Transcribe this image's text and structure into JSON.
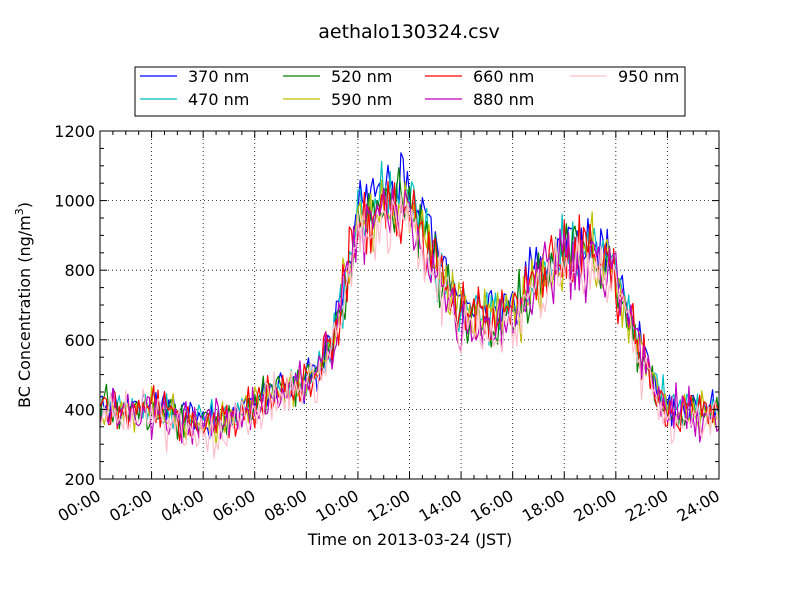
{
  "chart_data": {
    "type": "line",
    "title": "aethalo130324.csv",
    "xlabel": "Time on 2013-03-24 (JST)",
    "ylabel_main": "BC Concentration (ng/m",
    "ylabel_sup": "3",
    "ylabel_close": ")",
    "xlim": [
      "00:00",
      "24:00"
    ],
    "ylim": [
      200,
      1200
    ],
    "grid": true,
    "legend_placement": "top-center",
    "x_ticks": [
      "00:00",
      "02:00",
      "04:00",
      "06:00",
      "08:00",
      "10:00",
      "12:00",
      "14:00",
      "16:00",
      "18:00",
      "20:00",
      "22:00",
      "24:00"
    ],
    "y_ticks": [
      200,
      400,
      600,
      800,
      1000,
      1200
    ],
    "x": [
      "00:00",
      "01:00",
      "02:00",
      "03:00",
      "04:00",
      "05:00",
      "06:00",
      "07:00",
      "08:00",
      "09:00",
      "10:00",
      "11:00",
      "12:00",
      "13:00",
      "14:00",
      "15:00",
      "16:00",
      "17:00",
      "18:00",
      "19:00",
      "20:00",
      "21:00",
      "22:00",
      "23:00",
      "24:00"
    ],
    "series": [
      {
        "name": "370 nm",
        "color": "#0000ff",
        "values": [
          420,
          400,
          410,
          400,
          370,
          380,
          430,
          470,
          490,
          600,
          960,
          1050,
          1020,
          840,
          700,
          680,
          700,
          800,
          880,
          880,
          820,
          560,
          400,
          410,
          390
        ]
      },
      {
        "name": "470 nm",
        "color": "#00bfbf",
        "values": [
          410,
          400,
          405,
          395,
          365,
          380,
          425,
          460,
          480,
          590,
          940,
          1020,
          1000,
          830,
          690,
          680,
          690,
          790,
          870,
          870,
          810,
          560,
          400,
          400,
          385
        ]
      },
      {
        "name": "520 nm",
        "color": "#008000",
        "values": [
          400,
          395,
          400,
          390,
          360,
          370,
          420,
          450,
          480,
          590,
          920,
          990,
          980,
          820,
          680,
          670,
          680,
          780,
          860,
          860,
          800,
          550,
          390,
          390,
          380
        ]
      },
      {
        "name": "590 nm",
        "color": "#bfbf00",
        "values": [
          400,
          390,
          395,
          385,
          360,
          365,
          415,
          450,
          470,
          580,
          910,
          970,
          970,
          810,
          680,
          660,
          670,
          770,
          850,
          850,
          790,
          550,
          390,
          390,
          375
        ]
      },
      {
        "name": "660 nm",
        "color": "#ff0000",
        "values": [
          405,
          395,
          400,
          390,
          365,
          370,
          420,
          460,
          480,
          590,
          920,
          980,
          975,
          815,
          680,
          665,
          675,
          780,
          850,
          850,
          790,
          555,
          395,
          395,
          380
        ]
      },
      {
        "name": "880 nm",
        "color": "#bf00bf",
        "values": [
          395,
          385,
          390,
          380,
          355,
          360,
          410,
          450,
          470,
          580,
          910,
          960,
          960,
          800,
          640,
          650,
          660,
          790,
          840,
          850,
          780,
          550,
          385,
          385,
          370
        ]
      },
      {
        "name": "950 nm",
        "color": "#ffc0cb",
        "values": [
          380,
          370,
          375,
          365,
          330,
          345,
          395,
          440,
          460,
          560,
          880,
          930,
          940,
          780,
          640,
          630,
          640,
          740,
          820,
          820,
          760,
          530,
          370,
          365,
          350
        ]
      }
    ]
  }
}
